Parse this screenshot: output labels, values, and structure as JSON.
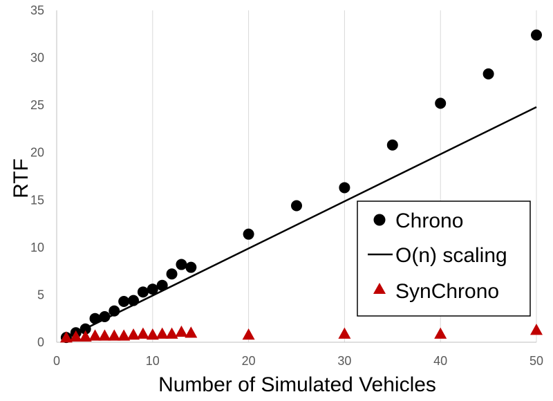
{
  "chart_data": {
    "type": "scatter",
    "xlabel": "Number of Simulated Vehicles",
    "ylabel": "RTF",
    "xlim": [
      0,
      50
    ],
    "ylim": [
      0,
      35
    ],
    "xticks": [
      0,
      10,
      20,
      30,
      40,
      50
    ],
    "yticks": [
      0,
      5,
      10,
      15,
      20,
      25,
      30,
      35
    ],
    "grid": "vertical",
    "legend_position": "bottom-right",
    "series": [
      {
        "name": "Chrono",
        "kind": "scatter",
        "marker": "circle",
        "color": "#000000",
        "points": [
          [
            1,
            0.5
          ],
          [
            2,
            1.0
          ],
          [
            3,
            1.4
          ],
          [
            4,
            2.5
          ],
          [
            5,
            2.7
          ],
          [
            6,
            3.3
          ],
          [
            7,
            4.3
          ],
          [
            8,
            4.4
          ],
          [
            9,
            5.3
          ],
          [
            10,
            5.6
          ],
          [
            11,
            6.0
          ],
          [
            12,
            7.2
          ],
          [
            13,
            8.2
          ],
          [
            14,
            7.9
          ],
          [
            20,
            11.4
          ],
          [
            25,
            14.4
          ],
          [
            30,
            16.3
          ],
          [
            35,
            20.8
          ],
          [
            40,
            25.2
          ],
          [
            45,
            28.3
          ],
          [
            50,
            32.4
          ]
        ]
      },
      {
        "name": "O(n) scaling",
        "kind": "line",
        "color": "#000000",
        "points": [
          [
            1,
            0.45
          ],
          [
            50,
            24.8
          ]
        ]
      },
      {
        "name": "SynChrono",
        "kind": "scatter",
        "marker": "triangle",
        "color": "#c00000",
        "points": [
          [
            1,
            0.5
          ],
          [
            2,
            0.6
          ],
          [
            3,
            0.6
          ],
          [
            4,
            0.7
          ],
          [
            5,
            0.7
          ],
          [
            6,
            0.7
          ],
          [
            7,
            0.7
          ],
          [
            8,
            0.8
          ],
          [
            9,
            0.9
          ],
          [
            10,
            0.8
          ],
          [
            11,
            0.9
          ],
          [
            12,
            0.9
          ],
          [
            13,
            1.1
          ],
          [
            14,
            1.0
          ],
          [
            20,
            0.8
          ],
          [
            30,
            0.9
          ],
          [
            40,
            0.9
          ],
          [
            50,
            1.3
          ]
        ]
      }
    ]
  }
}
